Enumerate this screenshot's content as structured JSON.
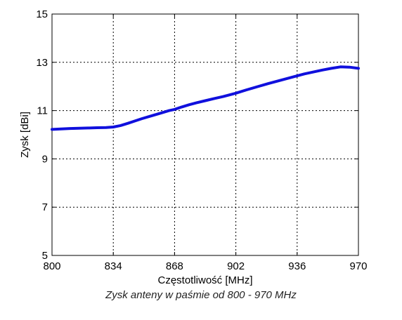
{
  "chart_data": {
    "type": "line",
    "xlabel": "Częstotliwość [MHz]",
    "ylabel": "Zysk [dBi]",
    "xlim": [
      800,
      970
    ],
    "ylim": [
      5,
      15
    ],
    "x_ticks": [
      800,
      834,
      868,
      902,
      936,
      970
    ],
    "y_ticks": [
      5,
      7,
      9,
      11,
      13,
      15
    ],
    "grid": true,
    "series": [
      {
        "color": "#1010dd",
        "x": [
          800,
          805,
          810,
          815,
          820,
          825,
          830,
          834,
          838,
          842,
          846,
          850,
          855,
          860,
          865,
          868,
          872,
          876,
          880,
          885,
          890,
          895,
          902,
          908,
          914,
          920,
          926,
          932,
          936,
          940,
          945,
          950,
          955,
          960,
          965,
          970
        ],
        "y": [
          10.22,
          10.24,
          10.26,
          10.27,
          10.28,
          10.29,
          10.3,
          10.32,
          10.38,
          10.47,
          10.57,
          10.67,
          10.78,
          10.89,
          11.0,
          11.05,
          11.15,
          11.24,
          11.32,
          11.41,
          11.5,
          11.58,
          11.72,
          11.86,
          11.99,
          12.12,
          12.24,
          12.36,
          12.44,
          12.52,
          12.6,
          12.68,
          12.75,
          12.81,
          12.8,
          12.75
        ]
      }
    ]
  },
  "caption": "Zysk anteny w paśmie od 800 - 970 MHz"
}
